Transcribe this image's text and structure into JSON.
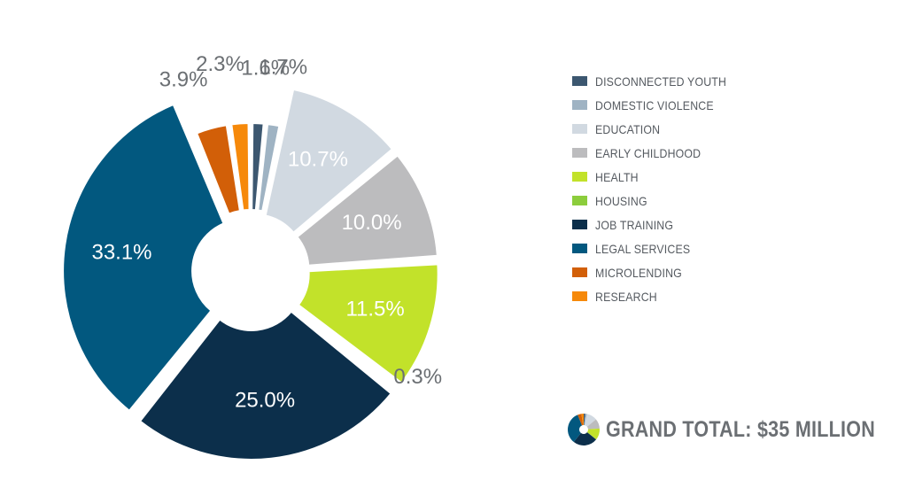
{
  "chart_data": {
    "type": "pie",
    "variant": "exploded-donut",
    "categories": [
      "DISCONNECTED YOUTH",
      "DOMESTIC VIOLENCE",
      "EDUCATION",
      "EARLY CHILDHOOD",
      "HEALTH",
      "HOUSING",
      "JOB TRAINING",
      "LEGAL SERVICES",
      "MICROLENDING",
      "RESEARCH"
    ],
    "values": [
      1.6,
      1.7,
      10.7,
      10.0,
      11.5,
      0.3,
      25.0,
      33.1,
      3.9,
      2.3
    ],
    "labels": [
      "1.6%",
      "1.7%",
      "10.7%",
      "10.0%",
      "11.5%",
      "0.3%",
      "25.0%",
      "33.1%",
      "3.9%",
      "2.3%"
    ],
    "colors": [
      "#3c5770",
      "#9fb3c3",
      "#d1d9e1",
      "#bcbcbe",
      "#c2e22a",
      "#8ccd3c",
      "#0c2f4b",
      "#02587f",
      "#d25f08",
      "#f6890a"
    ],
    "legend_position": "right"
  },
  "total": {
    "text": "GRAND TOTAL: $35 MILLION"
  }
}
